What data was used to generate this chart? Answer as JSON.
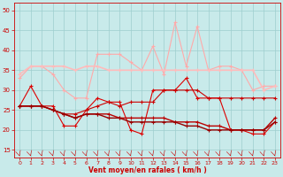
{
  "x": [
    0,
    1,
    2,
    3,
    4,
    5,
    6,
    7,
    8,
    9,
    10,
    11,
    12,
    13,
    14,
    15,
    16,
    17,
    18,
    19,
    20,
    21,
    22,
    23
  ],
  "lines": [
    {
      "y": [
        26,
        31,
        26,
        26,
        21,
        21,
        25,
        28,
        27,
        27,
        20,
        19,
        30,
        30,
        30,
        33,
        28,
        28,
        28,
        20,
        20,
        19,
        19,
        22
      ],
      "color": "#dd0000",
      "lw": 0.8,
      "marker": "+",
      "ms": 3.0
    },
    {
      "y": [
        26,
        26,
        26,
        25,
        24,
        24,
        25,
        26,
        27,
        26,
        27,
        27,
        27,
        30,
        30,
        30,
        30,
        28,
        28,
        28,
        28,
        28,
        28,
        28
      ],
      "color": "#cc0000",
      "lw": 0.8,
      "marker": "+",
      "ms": 3.0
    },
    {
      "y": [
        26,
        26,
        26,
        25,
        24,
        23,
        24,
        24,
        24,
        23,
        23,
        23,
        23,
        23,
        22,
        22,
        22,
        21,
        21,
        20,
        20,
        20,
        20,
        23
      ],
      "color": "#bb0000",
      "lw": 1.0,
      "marker": "+",
      "ms": 3.0
    },
    {
      "y": [
        26,
        26,
        26,
        25,
        24,
        23,
        24,
        24,
        23,
        23,
        22,
        22,
        22,
        22,
        22,
        21,
        21,
        20,
        20,
        20,
        20,
        20,
        20,
        22
      ],
      "color": "#990000",
      "lw": 1.0,
      "marker": "+",
      "ms": 3.0
    },
    {
      "y": [
        33,
        36,
        36,
        34,
        30,
        28,
        28,
        39,
        39,
        39,
        37,
        35,
        41,
        34,
        47,
        36,
        46,
        35,
        36,
        36,
        35,
        30,
        31,
        31
      ],
      "color": "#ffaaaa",
      "lw": 0.8,
      "marker": "+",
      "ms": 3.0
    },
    {
      "y": [
        34,
        36,
        36,
        36,
        36,
        35,
        36,
        36,
        35,
        35,
        35,
        35,
        35,
        35,
        35,
        35,
        35,
        35,
        35,
        35,
        35,
        35,
        30,
        31
      ],
      "color": "#ffbbbb",
      "lw": 1.2,
      "marker": "+",
      "ms": 3.0
    }
  ],
  "xlabel": "Vent moyen/en rafales ( km/h )",
  "xlim": [
    -0.5,
    23.5
  ],
  "ylim": [
    13,
    52
  ],
  "yticks": [
    15,
    20,
    25,
    30,
    35,
    40,
    45,
    50
  ],
  "xticks": [
    0,
    1,
    2,
    3,
    4,
    5,
    6,
    7,
    8,
    9,
    10,
    11,
    12,
    13,
    14,
    15,
    16,
    17,
    18,
    19,
    20,
    21,
    22,
    23
  ],
  "bg_color": "#c8eaea",
  "grid_color": "#9ecece",
  "tick_color": "#cc0000",
  "label_color": "#cc0000"
}
